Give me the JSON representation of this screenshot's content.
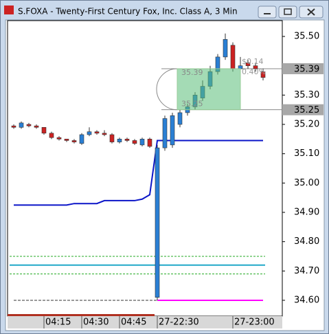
{
  "window_title": "S.FOXA - Twenty-First Century Fox, Inc. Class A, 3 Min",
  "chart_data": {
    "type": "candlestick",
    "categories": [
      null,
      null,
      null,
      null,
      "04:15",
      null,
      null,
      null,
      null,
      "04:30",
      null,
      null,
      null,
      null,
      "04:45",
      null,
      null,
      null,
      null,
      "27-22:30",
      null,
      null,
      null,
      null,
      null,
      null,
      null,
      null,
      null,
      "27-23:00",
      null,
      null,
      null,
      null
    ],
    "ohlc": [
      [
        35.195,
        35.2,
        35.185,
        35.19
      ],
      [
        35.19,
        35.21,
        35.185,
        35.205
      ],
      [
        35.2,
        35.205,
        35.19,
        35.195
      ],
      [
        35.195,
        35.2,
        35.185,
        35.19
      ],
      [
        35.19,
        35.19,
        35.165,
        35.17
      ],
      [
        35.17,
        35.175,
        35.15,
        35.155
      ],
      [
        35.155,
        35.16,
        35.145,
        35.15
      ],
      [
        35.15,
        35.15,
        35.14,
        35.145
      ],
      [
        35.145,
        35.15,
        35.135,
        35.14
      ],
      [
        35.135,
        35.17,
        35.13,
        35.165
      ],
      [
        35.165,
        35.19,
        35.16,
        35.175
      ],
      [
        35.175,
        35.18,
        35.165,
        35.17
      ],
      [
        35.17,
        35.18,
        35.16,
        35.165
      ],
      [
        35.165,
        35.17,
        35.135,
        35.14
      ],
      [
        35.14,
        35.155,
        35.135,
        35.15
      ],
      [
        35.15,
        35.155,
        35.14,
        35.145
      ],
      [
        35.145,
        35.15,
        35.13,
        35.135
      ],
      [
        35.13,
        35.155,
        35.125,
        35.15
      ],
      [
        35.15,
        35.155,
        35.12,
        35.125
      ],
      [
        34.61,
        35.13,
        34.6,
        35.12
      ],
      [
        35.12,
        35.23,
        35.11,
        35.22
      ],
      [
        35.13,
        35.24,
        35.12,
        35.23
      ],
      [
        35.2,
        35.25,
        35.19,
        35.24
      ],
      [
        35.24,
        35.27,
        35.23,
        35.26
      ],
      [
        35.26,
        35.31,
        35.25,
        35.3
      ],
      [
        35.29,
        35.35,
        35.28,
        35.33
      ],
      [
        35.33,
        35.4,
        35.32,
        35.38
      ],
      [
        35.38,
        35.44,
        35.37,
        35.43
      ],
      [
        35.43,
        35.51,
        35.42,
        35.49
      ],
      [
        35.47,
        35.48,
        35.38,
        35.39
      ],
      [
        35.39,
        35.43,
        35.38,
        35.4
      ],
      [
        35.41,
        35.42,
        35.39,
        35.4
      ],
      [
        35.4,
        35.41,
        35.38,
        35.39
      ],
      [
        35.38,
        35.39,
        35.35,
        35.36
      ]
    ],
    "up_color": "#2a7fd4",
    "down_color": "#cc2222",
    "series": [
      {
        "color": "#0a14c8",
        "dash": false,
        "values": [
          34.925,
          34.925,
          34.925,
          34.925,
          34.925,
          34.925,
          34.925,
          34.925,
          34.93,
          34.93,
          34.93,
          34.93,
          34.94,
          34.94,
          34.94,
          34.94,
          34.94,
          34.945,
          34.96,
          35.145,
          35.145,
          35.145,
          35.145,
          35.145,
          35.145,
          35.145,
          35.145,
          35.145,
          35.145,
          35.145,
          35.145,
          35.145,
          35.145,
          35.145
        ]
      },
      {
        "color": "#999999",
        "dash": true,
        "values": [
          34.6,
          34.6,
          34.6,
          34.6,
          34.6,
          34.6,
          34.6,
          34.6,
          34.6,
          34.6,
          34.6,
          34.6,
          34.6,
          34.6,
          34.6,
          34.6,
          34.6,
          34.6,
          34.6,
          34.6,
          null,
          null,
          null,
          null,
          null,
          null,
          null,
          null,
          null,
          null,
          null,
          null,
          null,
          null
        ]
      },
      {
        "color": "#ff00ff",
        "dash": false,
        "values": [
          null,
          null,
          null,
          null,
          null,
          null,
          null,
          null,
          null,
          null,
          null,
          null,
          null,
          null,
          null,
          null,
          null,
          null,
          null,
          34.6,
          34.6,
          34.6,
          34.6,
          34.6,
          34.6,
          34.6,
          34.6,
          34.6,
          34.6,
          34.6,
          34.6,
          34.6,
          34.6,
          34.6
        ]
      }
    ],
    "levels": [
      {
        "value": 34.75,
        "color": "#22aa22",
        "dash": true
      },
      {
        "value": 34.72,
        "color": "#20a8c8",
        "dash": false
      },
      {
        "value": 34.69,
        "color": "#22aa22",
        "dash": true
      }
    ],
    "ylim": [
      34.546,
      35.554
    ],
    "yticks": [
      {
        "value": 35.5,
        "label": "35.50"
      },
      {
        "value": 35.3,
        "label": "35.30"
      },
      {
        "value": 35.2,
        "label": "35.20"
      },
      {
        "value": 35.1,
        "label": "35.10"
      },
      {
        "value": 35.0,
        "label": "35.00"
      },
      {
        "value": 34.9,
        "label": "34.90"
      },
      {
        "value": 34.8,
        "label": "34.80"
      },
      {
        "value": 34.7,
        "label": "34.70"
      },
      {
        "value": 34.6,
        "label": "34.60"
      }
    ],
    "price_markers": [
      35.39,
      35.25
    ],
    "annotation": {
      "top": 35.39,
      "bottom": 35.25,
      "change_label": "$0.14",
      "pct_label": "0.40%"
    }
  }
}
